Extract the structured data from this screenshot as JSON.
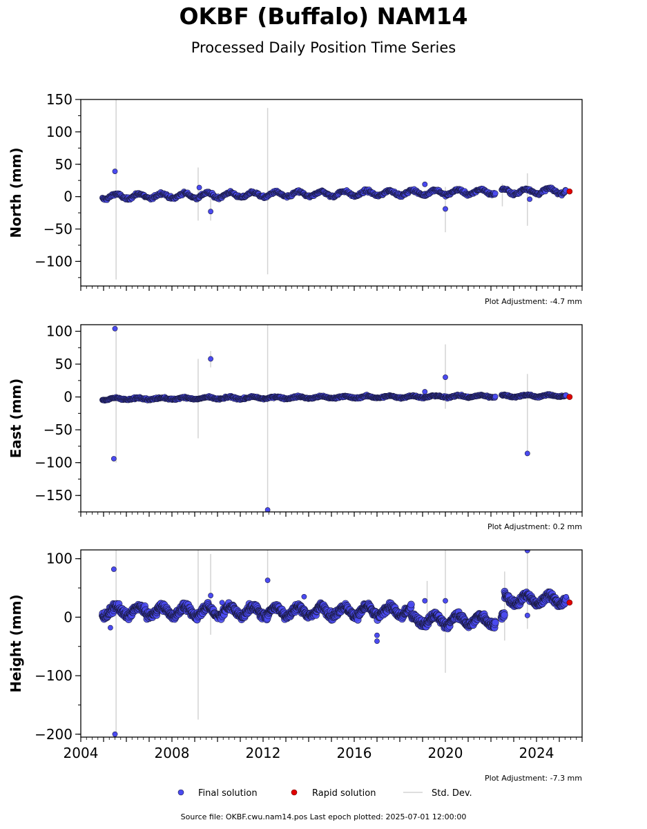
{
  "title": "OKBF (Buffalo) NAM14",
  "subtitle": "Processed Daily Position Time Series",
  "colors": {
    "final": "#4a4af0",
    "final_edge": "#1a1a40",
    "rapid": "#e00000",
    "std": "#d3d3d3"
  },
  "legend": {
    "final_label": "Final solution",
    "rapid_label": "Rapid solution",
    "std_label": "Std. Dev."
  },
  "footer": "Source file: OKBF.cwu.nam14.pos  Last epoch plotted: 2025-07-01 12:00:00",
  "chart_data": [
    {
      "type": "scatter",
      "ylabel": "North (mm)",
      "adjustment": "Plot Adjustment: -4.7 mm",
      "xlim": [
        2004.0,
        2026.0
      ],
      "ylim": [
        -138,
        150
      ],
      "yticks": [
        150,
        100,
        50,
        0,
        -50,
        -100
      ],
      "trend": {
        "start_date": "2004.95",
        "end_date": "2025.3",
        "start_mm": 0,
        "end_mm": 9,
        "seasonal_amp": 4,
        "noise": 2.5
      },
      "outliers": [
        {
          "t": 2005.5,
          "y": 39
        },
        {
          "t": 2009.7,
          "y": -23
        },
        {
          "t": 2009.2,
          "y": 14
        },
        {
          "t": 2020.0,
          "y": -19
        },
        {
          "t": 2019.1,
          "y": 19
        },
        {
          "t": 2023.7,
          "y": -4
        }
      ],
      "std_bars": [
        {
          "t": 2005.55,
          "low": -128,
          "high": 150
        },
        {
          "t": 2012.2,
          "low": -120,
          "high": 137
        },
        {
          "t": 2009.15,
          "low": -37,
          "high": 45
        },
        {
          "t": 2009.7,
          "low": -37,
          "high": 10
        },
        {
          "t": 2020.0,
          "low": -55,
          "high": 15
        },
        {
          "t": 2023.6,
          "low": -45,
          "high": 36
        },
        {
          "t": 2022.5,
          "low": -15,
          "high": 20
        }
      ],
      "rapid": [
        {
          "t": 2025.45,
          "y": 8
        }
      ]
    },
    {
      "type": "scatter",
      "ylabel": "East (mm)",
      "adjustment": "Plot Adjustment: 0.2 mm",
      "xlim": [
        2004.0,
        2026.0
      ],
      "ylim": [
        -175,
        110
      ],
      "yticks": [
        100,
        50,
        0,
        -50,
        -100,
        -150
      ],
      "trend": {
        "start_date": "2004.95",
        "end_date": "2025.3",
        "start_mm": -3,
        "end_mm": 2,
        "seasonal_amp": 1.5,
        "noise": 1.6
      },
      "outliers": [
        {
          "t": 2005.5,
          "y": 104
        },
        {
          "t": 2005.45,
          "y": -94
        },
        {
          "t": 2009.7,
          "y": 58
        },
        {
          "t": 2012.2,
          "y": -172
        },
        {
          "t": 2020.0,
          "y": 30
        },
        {
          "t": 2019.1,
          "y": 8
        },
        {
          "t": 2023.6,
          "y": -86
        }
      ],
      "std_bars": [
        {
          "t": 2005.55,
          "low": -100,
          "high": 110
        },
        {
          "t": 2009.15,
          "low": -63,
          "high": 58
        },
        {
          "t": 2009.7,
          "low": 45,
          "high": 70
        },
        {
          "t": 2012.2,
          "low": -175,
          "high": 110
        },
        {
          "t": 2020.0,
          "low": -18,
          "high": 80
        },
        {
          "t": 2023.6,
          "low": -90,
          "high": 35
        }
      ],
      "rapid": [
        {
          "t": 2025.45,
          "y": 0
        }
      ]
    },
    {
      "type": "scatter",
      "ylabel": "Height (mm)",
      "adjustment": "Plot Adjustment: -7.3 mm",
      "xlim": [
        2004.0,
        2026.0
      ],
      "ylim": [
        -205,
        115
      ],
      "yticks": [
        100,
        0,
        -100,
        -200
      ],
      "xticks": [
        "2004",
        "2008",
        "2012",
        "2016",
        "2020",
        "2024"
      ],
      "trend": {
        "start_date": "2004.95",
        "end_date": "2025.3",
        "start_mm": 10,
        "end_mm": 10,
        "seasonal_amp": 8,
        "noise": 7
      },
      "height_segments": [
        {
          "from": 2004.95,
          "to": 2018.5,
          "level": 10
        },
        {
          "from": 2018.5,
          "to": 2022.6,
          "level": -5
        },
        {
          "from": 2022.6,
          "to": 2025.3,
          "level": 30
        }
      ],
      "outliers": [
        {
          "t": 2005.45,
          "y": 82
        },
        {
          "t": 2005.5,
          "y": -200
        },
        {
          "t": 2005.3,
          "y": -18
        },
        {
          "t": 2009.7,
          "y": 37
        },
        {
          "t": 2010.2,
          "y": 25
        },
        {
          "t": 2012.2,
          "y": 63
        },
        {
          "t": 2013.8,
          "y": 35
        },
        {
          "t": 2017.0,
          "y": -31
        },
        {
          "t": 2017.0,
          "y": -41
        },
        {
          "t": 2020.0,
          "y": 28
        },
        {
          "t": 2019.1,
          "y": 28
        },
        {
          "t": 2023.6,
          "y": 114
        },
        {
          "t": 2023.6,
          "y": 3
        },
        {
          "t": 2025.3,
          "y": 35
        }
      ],
      "std_bars": [
        {
          "t": 2005.55,
          "low": -205,
          "high": 115
        },
        {
          "t": 2009.15,
          "low": -175,
          "high": 115
        },
        {
          "t": 2009.7,
          "low": -30,
          "high": 108
        },
        {
          "t": 2012.2,
          "low": 10,
          "high": 115
        },
        {
          "t": 2020.0,
          "low": -95,
          "high": 115
        },
        {
          "t": 2019.2,
          "low": 5,
          "high": 62
        },
        {
          "t": 2022.6,
          "low": -40,
          "high": 78
        },
        {
          "t": 2023.6,
          "low": -20,
          "high": 115
        }
      ],
      "rapid": [
        {
          "t": 2025.45,
          "y": 25
        }
      ]
    }
  ]
}
